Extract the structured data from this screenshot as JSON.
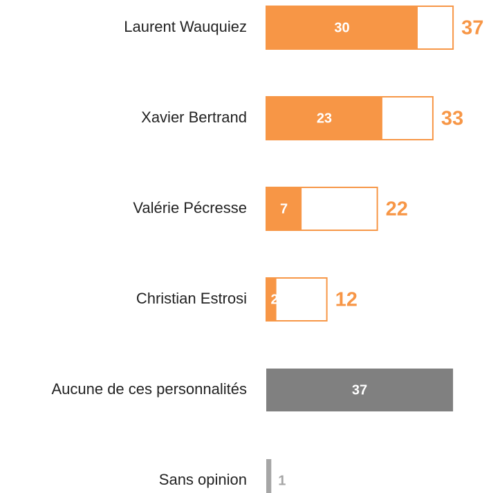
{
  "chart_data": {
    "type": "bar",
    "categories": [
      "Laurent Wauquiez",
      "Xavier Bertrand",
      "Valérie Pécresse",
      "Christian Estrosi",
      "Aucune de ces personnalités",
      "Sans opinion"
    ],
    "series": [
      {
        "colors": [
          "#f79646",
          "#f79646",
          "#f79646",
          "#f79646",
          "#808080",
          "#a6a6a6"
        ],
        "values": [
          30,
          23,
          7,
          2,
          37,
          1
        ]
      },
      {
        "color": "#f79646",
        "values": [
          37,
          33,
          22,
          12,
          null,
          null
        ]
      }
    ]
  }
}
